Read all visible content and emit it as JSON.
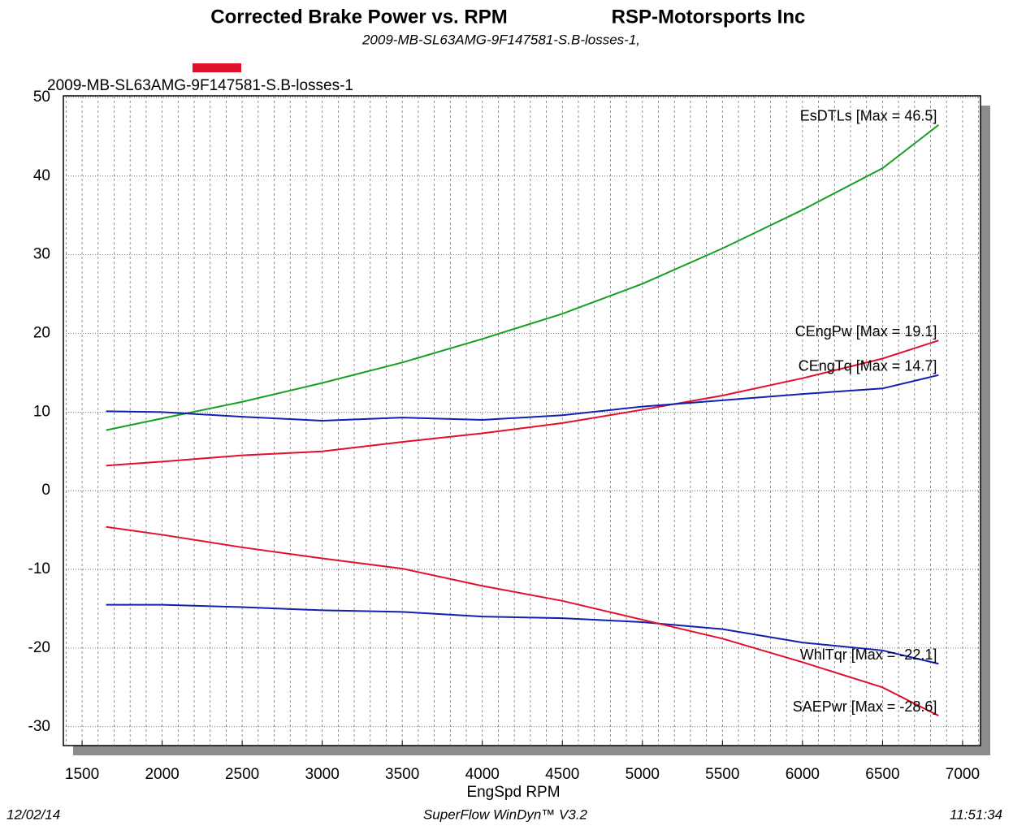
{
  "chart_data": {
    "type": "line",
    "title": "Corrected Brake Power vs. RPM",
    "company": "RSP-Motorsports Inc",
    "subtitle": "2009-MB-SL63AMG-9F147581-S.B-losses-1,",
    "legend_entry": {
      "name": "2009-MB-SL63AMG-9F147581-S.B-losses-1",
      "color": "#e0102a"
    },
    "xlabel": "EngSpd RPM",
    "footer": {
      "date": "12/02/14",
      "software": "SuperFlow WinDyn™ V3.2",
      "time": "11:51:34"
    },
    "x": [
      1650,
      2000,
      2500,
      3000,
      3500,
      4000,
      4500,
      5000,
      5500,
      6000,
      6500,
      6850
    ],
    "series": [
      {
        "name": "EsDTLs",
        "label": "EsDTLs [Max = 46.5]",
        "color": "#14a020",
        "values": [
          7.7,
          9.2,
          11.3,
          13.7,
          16.3,
          19.3,
          22.5,
          26.3,
          30.8,
          35.7,
          41,
          46.5
        ]
      },
      {
        "name": "CEngPw",
        "label": "CEngPw [Max = 19.1]",
        "color": "#e0102a",
        "values": [
          3.2,
          3.7,
          4.5,
          5.0,
          6.2,
          7.3,
          8.6,
          10.3,
          12.1,
          14.3,
          16.8,
          19.1
        ]
      },
      {
        "name": "CEngTq",
        "label": "CEngTq [Max = 14.7]",
        "color": "#1020b0",
        "values": [
          10.1,
          10,
          9.4,
          8.9,
          9.3,
          9.0,
          9.6,
          10.7,
          11.5,
          12.3,
          13.0,
          14.7
        ]
      },
      {
        "name": "WhlTqr",
        "label": "WhlTqr [Max = -22.1]",
        "color": "#1020b0",
        "values": [
          -14.5,
          -14.5,
          -14.8,
          -15.2,
          -15.4,
          -16.0,
          -16.2,
          -16.7,
          -17.6,
          -19.3,
          -20.3,
          -22
        ]
      },
      {
        "name": "SAEPwr",
        "label": "SAEPwr [Max = -28.6]",
        "color": "#e0102a",
        "values": [
          -4.6,
          -5.6,
          -7.2,
          -8.6,
          -9.9,
          -12.1,
          -14.0,
          -16.4,
          -18.8,
          -21.8,
          -25.0,
          -28.6
        ]
      }
    ],
    "xlim": [
      1383,
      7112
    ],
    "ylim": [
      -32.4,
      50.2
    ],
    "xticks": [
      1500,
      2000,
      2500,
      3000,
      3500,
      4000,
      4500,
      5000,
      5500,
      6000,
      6500,
      7000
    ],
    "yticks": [
      -30,
      -20,
      -10,
      0,
      10,
      20,
      30,
      40,
      50
    ],
    "xminor": [
      1400,
      1500,
      1600,
      1700,
      1800,
      1900,
      2000,
      2100,
      2200,
      2300,
      2400,
      2500,
      2600,
      2700,
      2800,
      2900,
      3000,
      3100,
      3200,
      3300,
      3400,
      3500,
      3600,
      3700,
      3800,
      3900,
      4000,
      4100,
      4200,
      4300,
      4400,
      4500,
      4600,
      4700,
      4800,
      4900,
      5000,
      5100,
      5200,
      5300,
      5400,
      5500,
      5600,
      5700,
      5800,
      5900,
      6000,
      6100,
      6200,
      6300,
      6400,
      6500,
      6600,
      6700,
      6800,
      6900,
      7000,
      7100
    ],
    "grid": true
  }
}
